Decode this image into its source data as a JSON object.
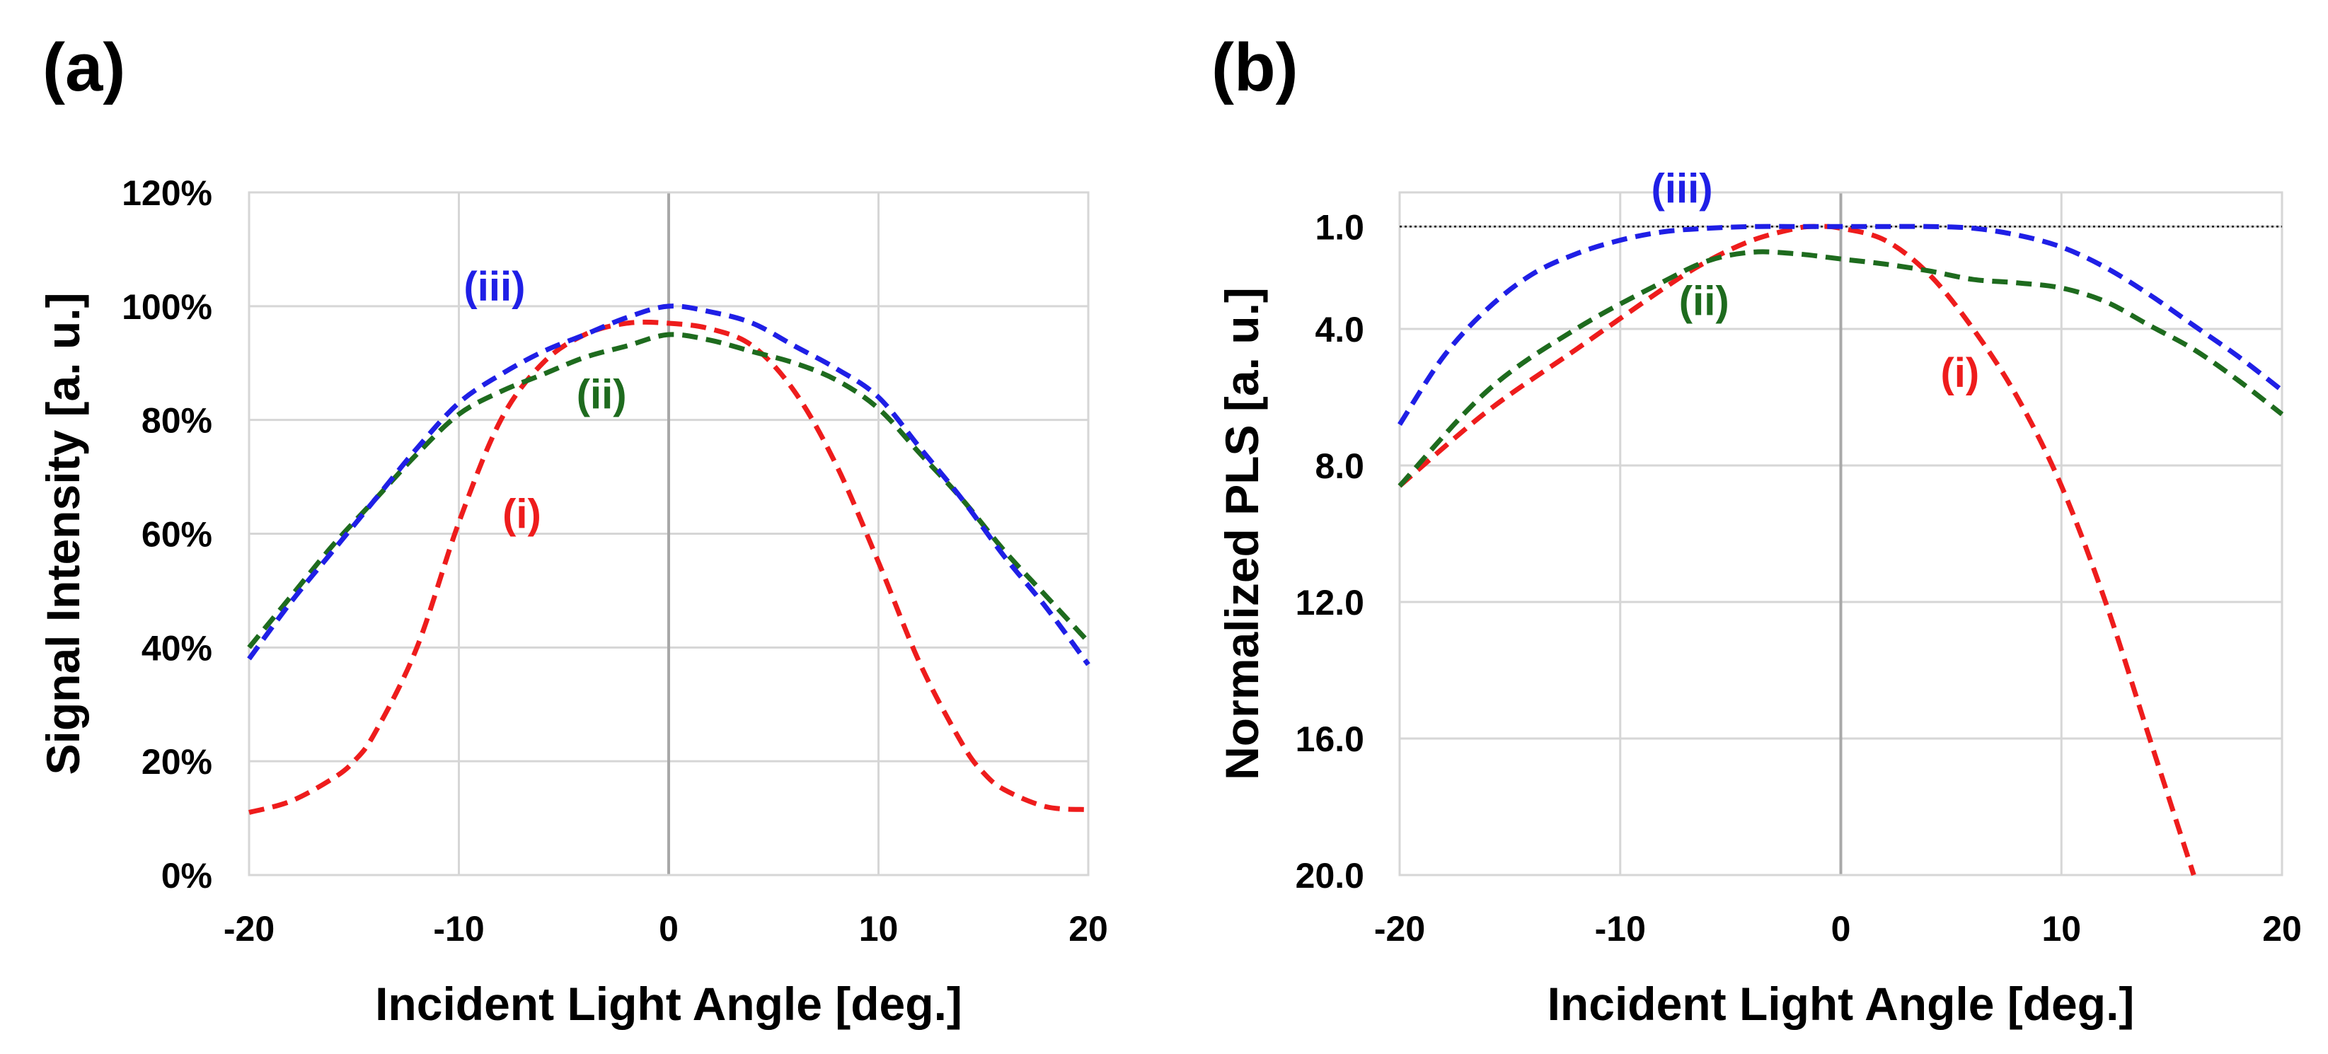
{
  "colors": {
    "i": "#ee1c1c",
    "ii": "#1e6b1e",
    "iii": "#1f1fe6",
    "grid": "#d6d6d6",
    "zero_line": "#a8a8a8"
  },
  "chart_data": [
    {
      "type": "line",
      "panel_label": "(a)",
      "xlabel": "Incident Light Angle [deg.]",
      "ylabel": "Signal Intensity [a. u.]",
      "xlim": [
        -20,
        20
      ],
      "ylim": [
        0,
        1.2
      ],
      "x_ticks": [
        -20,
        -10,
        0,
        10,
        20
      ],
      "x_tick_labels": [
        "-20",
        "-10",
        "0",
        "10",
        "20"
      ],
      "y_ticks": [
        0,
        0.2,
        0.4,
        0.6,
        0.8,
        1.0,
        1.2
      ],
      "y_tick_labels": [
        "0%",
        "20%",
        "40%",
        "60%",
        "80%",
        "100%",
        "120%"
      ],
      "y_inverted": false,
      "grid": true,
      "series": [
        {
          "name": "(i)",
          "color_key": "i",
          "label_at": [
            -7,
            0.61
          ],
          "x": [
            -20,
            -18,
            -16,
            -15,
            -14,
            -12,
            -10,
            -8,
            -6,
            -4,
            -2,
            0,
            2,
            4,
            6,
            8,
            10,
            12,
            14,
            15,
            16,
            18,
            20
          ],
          "y": [
            0.11,
            0.13,
            0.17,
            0.2,
            0.25,
            0.4,
            0.62,
            0.8,
            0.9,
            0.95,
            0.97,
            0.97,
            0.96,
            0.93,
            0.85,
            0.72,
            0.55,
            0.37,
            0.23,
            0.18,
            0.15,
            0.12,
            0.115
          ]
        },
        {
          "name": "(ii)",
          "color_key": "ii",
          "label_at": [
            -3.2,
            0.82
          ],
          "x": [
            -20,
            -18,
            -16,
            -14,
            -12,
            -10,
            -8,
            -6,
            -4,
            -2,
            0,
            2,
            4,
            6,
            8,
            10,
            12,
            14,
            16,
            18,
            20
          ],
          "y": [
            0.4,
            0.49,
            0.58,
            0.66,
            0.74,
            0.81,
            0.85,
            0.88,
            0.91,
            0.93,
            0.95,
            0.94,
            0.92,
            0.9,
            0.87,
            0.82,
            0.74,
            0.66,
            0.57,
            0.49,
            0.41
          ]
        },
        {
          "name": "(iii)",
          "color_key": "iii",
          "label_at": [
            -8.3,
            1.01
          ],
          "x": [
            -20,
            -18,
            -16,
            -14,
            -12,
            -10,
            -8,
            -6,
            -4,
            -2,
            0,
            2,
            4,
            6,
            8,
            10,
            12,
            14,
            16,
            18,
            20
          ],
          "y": [
            0.38,
            0.48,
            0.57,
            0.66,
            0.75,
            0.83,
            0.88,
            0.92,
            0.95,
            0.98,
            1.0,
            0.99,
            0.97,
            0.93,
            0.89,
            0.84,
            0.75,
            0.66,
            0.56,
            0.47,
            0.37
          ]
        }
      ]
    },
    {
      "type": "line",
      "panel_label": "(b)",
      "xlabel": "Incident Light Angle [deg.]",
      "ylabel": "Normalized  PLS [a. u.]",
      "xlim": [
        -20,
        20
      ],
      "ylim": [
        20.0,
        1.0
      ],
      "y_bottom_value": 20.0,
      "y_top_value": 0.0,
      "x_ticks": [
        -20,
        -10,
        0,
        10,
        20
      ],
      "x_tick_labels": [
        "-20",
        "-10",
        "0",
        "10",
        "20"
      ],
      "y_ticks": [
        1.0,
        4.0,
        8.0,
        12.0,
        16.0,
        20.0
      ],
      "y_tick_labels": [
        "1.0",
        "4.0",
        "8.0",
        "12.0",
        "16.0",
        "20.0"
      ],
      "y_inverted": true,
      "reference_line_y": 1.0,
      "grid": true,
      "series": [
        {
          "name": "(i)",
          "color_key": "i",
          "label_at": [
            5.4,
            5.7
          ],
          "x": [
            -20,
            -16,
            -12,
            -8,
            -6,
            -4,
            -2,
            -1,
            0,
            2,
            4,
            6,
            8,
            10,
            12,
            14,
            16
          ],
          "y": [
            8.6,
            6.4,
            4.6,
            2.8,
            2.0,
            1.4,
            1.05,
            1.0,
            1.05,
            1.4,
            2.4,
            4.0,
            6.0,
            8.6,
            12.0,
            16.0,
            20.0
          ]
        },
        {
          "name": "(ii)",
          "color_key": "ii",
          "label_at": [
            -6.2,
            3.6
          ],
          "x": [
            -20,
            -16,
            -12,
            -8,
            -6,
            -4,
            -2,
            0,
            2,
            4,
            6,
            8,
            10,
            12,
            14,
            16,
            18,
            20
          ],
          "y": [
            8.6,
            5.8,
            4.0,
            2.6,
            2.0,
            1.75,
            1.8,
            1.95,
            2.1,
            2.3,
            2.55,
            2.65,
            2.8,
            3.2,
            3.9,
            4.6,
            5.5,
            6.5
          ]
        },
        {
          "name": "(iii)",
          "color_key": "iii",
          "label_at": [
            -7.2,
            0.3
          ],
          "x": [
            -20,
            -18,
            -16,
            -14,
            -12,
            -10,
            -8,
            -6,
            -4,
            -2,
            0,
            2,
            4,
            6,
            8,
            10,
            12,
            14,
            16,
            18,
            20
          ],
          "y": [
            6.8,
            4.8,
            3.4,
            2.4,
            1.8,
            1.4,
            1.15,
            1.05,
            1.0,
            1.0,
            1.0,
            1.0,
            1.0,
            1.05,
            1.25,
            1.6,
            2.2,
            3.0,
            3.9,
            4.8,
            5.8
          ]
        }
      ]
    }
  ]
}
